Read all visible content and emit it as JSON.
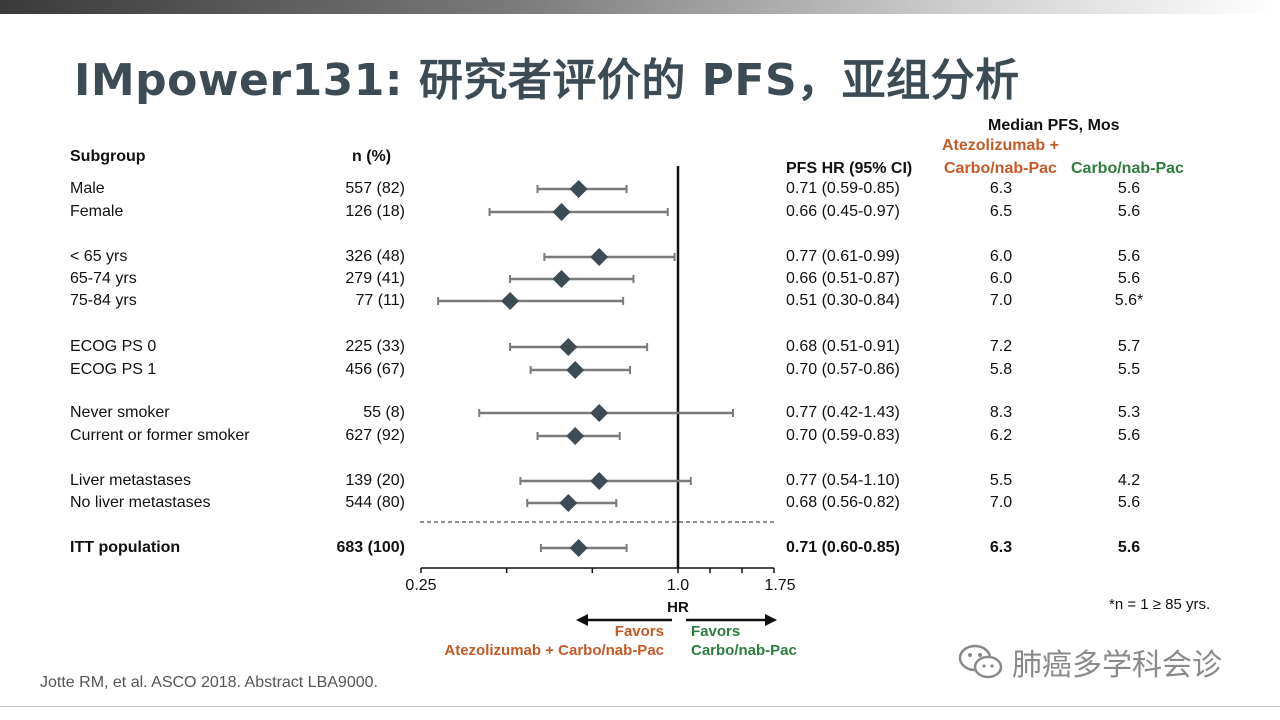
{
  "title": "IMpower131: 研究者评价的 PFS，亚组分析",
  "headers": {
    "subgroup": "Subgroup",
    "n": "n (%)",
    "pfs_hr": "PFS HR (95% CI)",
    "median_pfs": "Median PFS, Mos",
    "arm_a": "Atezolizumab +",
    "arm_a_2": "Carbo/nab-Pac",
    "arm_c": "Carbo/nab-Pac"
  },
  "colors": {
    "orange": "#c55a27",
    "green": "#2e7d3e",
    "marker": "#3d4b55",
    "whisker": "#7a7a7a",
    "title": "#3d4b55"
  },
  "axis": {
    "ticks": [
      "0.25",
      "1.0",
      "1.75"
    ],
    "label": "HR"
  },
  "favors": {
    "left_1": "Favors",
    "left_2": "Atezolizumab + Carbo/nab-Pac",
    "right_1": "Favors",
    "right_2": "Carbo/nab-Pac"
  },
  "footnote": "*n = 1 ≥ 85 yrs.",
  "citation": "Jotte RM, et al. ASCO 2018. Abstract LBA9000.",
  "watermark": "肺癌多学科会诊",
  "chart_data": {
    "type": "forest",
    "x_axis": {
      "label": "HR",
      "ticks": [
        0.25,
        1.0,
        1.75
      ],
      "reference_line": 1.0
    },
    "rows": [
      {
        "label": "Male",
        "n": "557 (82)",
        "hr": 0.71,
        "lo": 0.59,
        "hi": 0.85,
        "text": "0.71 (0.59-0.85)",
        "pfs_a": "6.3",
        "pfs_c": "5.6"
      },
      {
        "label": "Female",
        "n": "126 (18)",
        "hr": 0.66,
        "lo": 0.45,
        "hi": 0.97,
        "text": "0.66 (0.45-0.97)",
        "pfs_a": "6.5",
        "pfs_c": "5.6"
      },
      {
        "label": "< 65 yrs",
        "n": "326 (48)",
        "hr": 0.77,
        "lo": 0.61,
        "hi": 0.99,
        "text": "0.77 (0.61-0.99)",
        "pfs_a": "6.0",
        "pfs_c": "5.6"
      },
      {
        "label": "65-74 yrs",
        "n": "279 (41)",
        "hr": 0.66,
        "lo": 0.51,
        "hi": 0.87,
        "text": "0.66 (0.51-0.87)",
        "pfs_a": "6.0",
        "pfs_c": "5.6"
      },
      {
        "label": "75-84 yrs",
        "n": "77 (11)",
        "hr": 0.51,
        "lo": 0.3,
        "hi": 0.84,
        "text": "0.51 (0.30-0.84)",
        "pfs_a": "7.0",
        "pfs_c": "5.6*"
      },
      {
        "label": "ECOG PS 0",
        "n": "225 (33)",
        "hr": 0.68,
        "lo": 0.51,
        "hi": 0.91,
        "text": "0.68 (0.51-0.91)",
        "pfs_a": "7.2",
        "pfs_c": "5.7"
      },
      {
        "label": "ECOG PS 1",
        "n": "456 (67)",
        "hr": 0.7,
        "lo": 0.57,
        "hi": 0.86,
        "text": "0.70 (0.57-0.86)",
        "pfs_a": "5.8",
        "pfs_c": "5.5"
      },
      {
        "label": "Never smoker",
        "n": "55 (8)",
        "hr": 0.77,
        "lo": 0.42,
        "hi": 1.43,
        "text": "0.77 (0.42-1.43)",
        "pfs_a": "8.3",
        "pfs_c": "5.3"
      },
      {
        "label": "Current or former smoker",
        "n": "627 (92)",
        "hr": 0.7,
        "lo": 0.59,
        "hi": 0.83,
        "text": "0.70 (0.59-0.83)",
        "pfs_a": "6.2",
        "pfs_c": "5.6"
      },
      {
        "label": "Liver metastases",
        "n": "139 (20)",
        "hr": 0.77,
        "lo": 0.54,
        "hi": 1.1,
        "text": "0.77 (0.54-1.10)",
        "pfs_a": "5.5",
        "pfs_c": "4.2"
      },
      {
        "label": "No liver metastases",
        "n": "544 (80)",
        "hr": 0.68,
        "lo": 0.56,
        "hi": 0.82,
        "text": "0.68 (0.56-0.82)",
        "pfs_a": "7.0",
        "pfs_c": "5.6"
      },
      {
        "label": "ITT population",
        "n": "683 (100)",
        "hr": 0.71,
        "lo": 0.6,
        "hi": 0.85,
        "text": "0.71 (0.60-0.85)",
        "pfs_a": "6.3",
        "pfs_c": "5.6",
        "bold": true
      }
    ]
  }
}
